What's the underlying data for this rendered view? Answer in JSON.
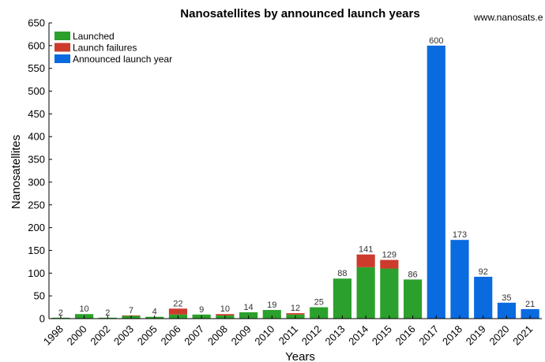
{
  "chart_data": {
    "type": "bar",
    "stacked": true,
    "title": "Nanosatellites by announced launch years",
    "watermark": "www.nanosats.e",
    "xlabel": "Years",
    "ylabel": "Nanosatellites",
    "ylim": [
      0,
      650
    ],
    "yticks": [
      0,
      50,
      100,
      150,
      200,
      250,
      300,
      350,
      400,
      450,
      500,
      550,
      600,
      650
    ],
    "grid": false,
    "legend_position": "top-left",
    "categories": [
      "1998",
      "2000",
      "2002",
      "2003",
      "2005",
      "2006",
      "2007",
      "2008",
      "2009",
      "2010",
      "2011",
      "2012",
      "2013",
      "2014",
      "2015",
      "2016",
      "2017",
      "2018",
      "2019",
      "2020",
      "2021"
    ],
    "totals": [
      2,
      10,
      2,
      7,
      4,
      22,
      9,
      10,
      14,
      19,
      12,
      25,
      88,
      141,
      129,
      86,
      600,
      173,
      92,
      35,
      21
    ],
    "series": [
      {
        "name": "Launched",
        "color": "#2ca02c",
        "values": [
          2,
          10,
          2,
          6,
          4,
          9,
          9,
          7,
          14,
          19,
          9,
          25,
          88,
          113,
          110,
          86,
          0,
          0,
          0,
          0,
          0
        ]
      },
      {
        "name": "Launch failures",
        "color": "#cc3b2b",
        "values": [
          0,
          0,
          0,
          1,
          0,
          13,
          0,
          3,
          0,
          0,
          3,
          0,
          0,
          28,
          19,
          0,
          0,
          0,
          0,
          0,
          0
        ]
      },
      {
        "name": "Announced launch year",
        "color": "#0a6ae0",
        "values": [
          0,
          0,
          0,
          0,
          0,
          0,
          0,
          0,
          0,
          0,
          0,
          0,
          0,
          0,
          0,
          0,
          600,
          173,
          92,
          35,
          21
        ]
      }
    ]
  }
}
